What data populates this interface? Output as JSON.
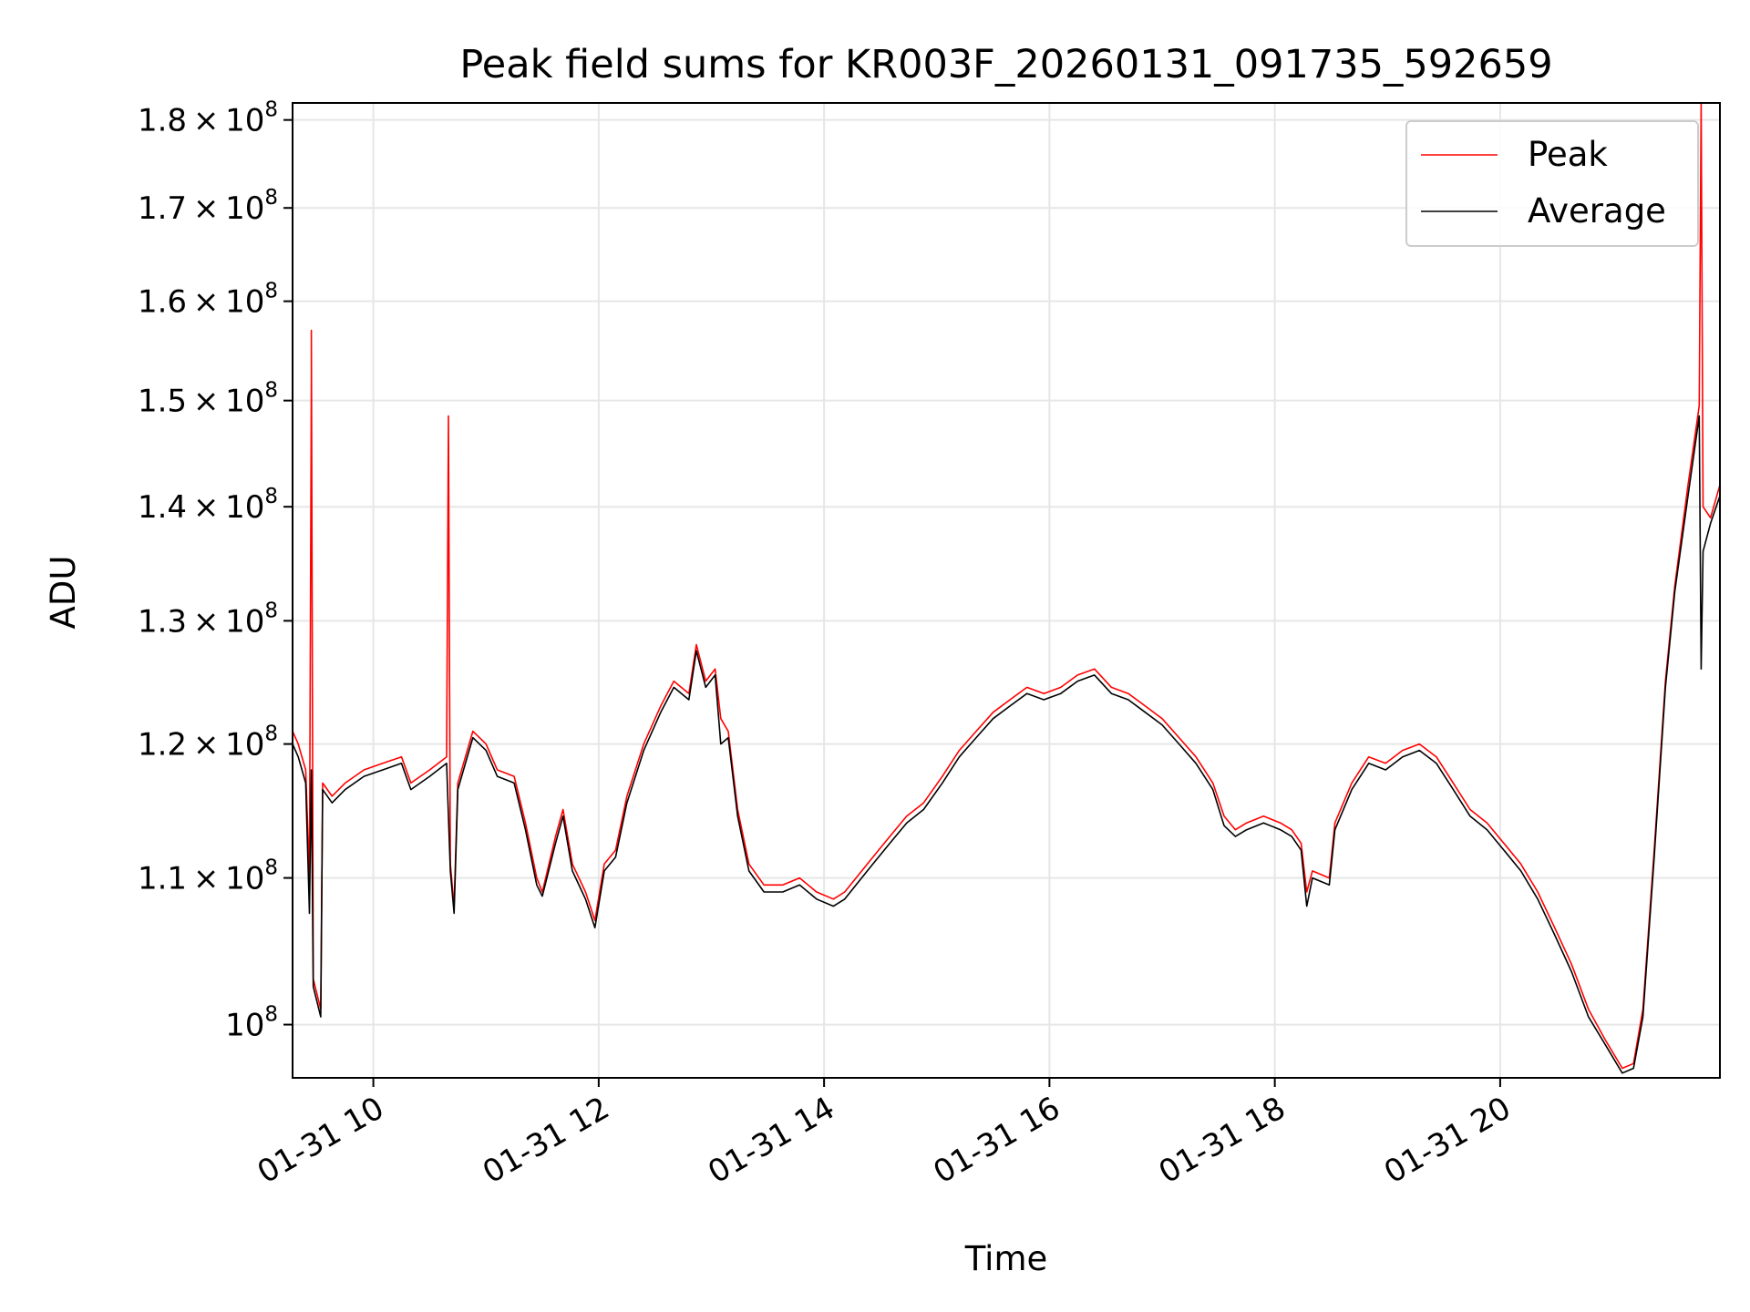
{
  "chart_data": {
    "type": "line",
    "title": "Peak field sums for KR003F_20260131_091735_592659",
    "xlabel": "Time",
    "ylabel": "ADU",
    "yscale": "log",
    "xlim": [
      "2026-01-31 09:17",
      "2026-01-31 21:57"
    ],
    "ylim": [
      96600000,
      182000000
    ],
    "x_ticks": [
      {
        "x": "2026-01-31 10:00",
        "label": "01-31 10"
      },
      {
        "x": "2026-01-31 12:00",
        "label": "01-31 12"
      },
      {
        "x": "2026-01-31 14:00",
        "label": "01-31 14"
      },
      {
        "x": "2026-01-31 16:00",
        "label": "01-31 16"
      },
      {
        "x": "2026-01-31 18:00",
        "label": "01-31 18"
      },
      {
        "x": "2026-01-31 20:00",
        "label": "01-31 20"
      }
    ],
    "y_ticks": [
      {
        "value": 100000000,
        "mantissa": "",
        "exp": "8"
      },
      {
        "value": 110000000,
        "mantissa": "1.1",
        "exp": "8"
      },
      {
        "value": 120000000,
        "mantissa": "1.2",
        "exp": "8"
      },
      {
        "value": 130000000,
        "mantissa": "1.3",
        "exp": "8"
      },
      {
        "value": 140000000,
        "mantissa": "1.4",
        "exp": "8"
      },
      {
        "value": 150000000,
        "mantissa": "1.5",
        "exp": "8"
      },
      {
        "value": 160000000,
        "mantissa": "1.6",
        "exp": "8"
      },
      {
        "value": 170000000,
        "mantissa": "1.7",
        "exp": "8"
      },
      {
        "value": 180000000,
        "mantissa": "1.8",
        "exp": "8"
      }
    ],
    "grid": true,
    "legend_position": "top-right",
    "series": [
      {
        "name": "Peak",
        "color": "#ff0000",
        "points": [
          [
            "2026-01-31 09:17",
            121000000
          ],
          [
            "2026-01-31 09:20",
            120000000
          ],
          [
            "2026-01-31 09:24",
            118000000
          ],
          [
            "2026-01-31 09:26",
            110000000
          ],
          [
            "2026-01-31 09:27",
            152000000
          ],
          [
            "2026-01-31 09:27",
            157000000
          ],
          [
            "2026-01-31 09:28",
            103000000
          ],
          [
            "2026-01-31 09:30",
            102000000
          ],
          [
            "2026-01-31 09:32",
            101000000
          ],
          [
            "2026-01-31 09:33",
            117000000
          ],
          [
            "2026-01-31 09:38",
            116000000
          ],
          [
            "2026-01-31 09:45",
            117000000
          ],
          [
            "2026-01-31 09:55",
            118000000
          ],
          [
            "2026-01-31 10:05",
            118500000
          ],
          [
            "2026-01-31 10:15",
            119000000
          ],
          [
            "2026-01-31 10:20",
            117000000
          ],
          [
            "2026-01-31 10:30",
            118000000
          ],
          [
            "2026-01-31 10:39",
            119000000
          ],
          [
            "2026-01-31 10:40",
            148500000
          ],
          [
            "2026-01-31 10:41",
            111000000
          ],
          [
            "2026-01-31 10:43",
            108000000
          ],
          [
            "2026-01-31 10:45",
            117000000
          ],
          [
            "2026-01-31 10:53",
            121000000
          ],
          [
            "2026-01-31 11:00",
            120000000
          ],
          [
            "2026-01-31 11:06",
            118000000
          ],
          [
            "2026-01-31 11:15",
            117500000
          ],
          [
            "2026-01-31 11:21",
            114000000
          ],
          [
            "2026-01-31 11:27",
            110000000
          ],
          [
            "2026-01-31 11:30",
            109000000
          ],
          [
            "2026-01-31 11:37",
            113000000
          ],
          [
            "2026-01-31 11:41",
            115000000
          ],
          [
            "2026-01-31 11:46",
            111000000
          ],
          [
            "2026-01-31 11:53",
            109000000
          ],
          [
            "2026-01-31 11:58",
            107000000
          ],
          [
            "2026-01-31 12:03",
            111000000
          ],
          [
            "2026-01-31 12:09",
            112000000
          ],
          [
            "2026-01-31 12:15",
            116000000
          ],
          [
            "2026-01-31 12:24",
            120000000
          ],
          [
            "2026-01-31 12:33",
            123000000
          ],
          [
            "2026-01-31 12:40",
            125000000
          ],
          [
            "2026-01-31 12:48",
            124000000
          ],
          [
            "2026-01-31 12:52",
            128000000
          ],
          [
            "2026-01-31 12:57",
            125000000
          ],
          [
            "2026-01-31 13:02",
            126000000
          ],
          [
            "2026-01-31 13:05",
            122000000
          ],
          [
            "2026-01-31 13:09",
            121000000
          ],
          [
            "2026-01-31 13:14",
            115000000
          ],
          [
            "2026-01-31 13:20",
            111000000
          ],
          [
            "2026-01-31 13:28",
            109500000
          ],
          [
            "2026-01-31 13:38",
            109500000
          ],
          [
            "2026-01-31 13:47",
            110000000
          ],
          [
            "2026-01-31 13:56",
            109000000
          ],
          [
            "2026-01-31 14:05",
            108500000
          ],
          [
            "2026-01-31 14:11",
            109000000
          ],
          [
            "2026-01-31 14:17",
            110000000
          ],
          [
            "2026-01-31 14:26",
            111500000
          ],
          [
            "2026-01-31 14:35",
            113000000
          ],
          [
            "2026-01-31 14:44",
            114500000
          ],
          [
            "2026-01-31 14:53",
            115500000
          ],
          [
            "2026-01-31 15:03",
            117500000
          ],
          [
            "2026-01-31 15:12",
            119500000
          ],
          [
            "2026-01-31 15:21",
            121000000
          ],
          [
            "2026-01-31 15:30",
            122500000
          ],
          [
            "2026-01-31 15:39",
            123500000
          ],
          [
            "2026-01-31 15:48",
            124500000
          ],
          [
            "2026-01-31 15:57",
            124000000
          ],
          [
            "2026-01-31 16:06",
            124500000
          ],
          [
            "2026-01-31 16:15",
            125500000
          ],
          [
            "2026-01-31 16:24",
            126000000
          ],
          [
            "2026-01-31 16:33",
            124500000
          ],
          [
            "2026-01-31 16:42",
            124000000
          ],
          [
            "2026-01-31 16:51",
            123000000
          ],
          [
            "2026-01-31 17:00",
            122000000
          ],
          [
            "2026-01-31 17:09",
            120500000
          ],
          [
            "2026-01-31 17:18",
            119000000
          ],
          [
            "2026-01-31 17:27",
            117000000
          ],
          [
            "2026-01-31 17:33",
            114500000
          ],
          [
            "2026-01-31 17:39",
            113500000
          ],
          [
            "2026-01-31 17:45",
            114000000
          ],
          [
            "2026-01-31 17:54",
            114500000
          ],
          [
            "2026-01-31 18:03",
            114000000
          ],
          [
            "2026-01-31 18:09",
            113500000
          ],
          [
            "2026-01-31 18:14",
            112500000
          ],
          [
            "2026-01-31 18:17",
            109000000
          ],
          [
            "2026-01-31 18:20",
            110500000
          ],
          [
            "2026-01-31 18:29",
            110000000
          ],
          [
            "2026-01-31 18:32",
            114000000
          ],
          [
            "2026-01-31 18:41",
            117000000
          ],
          [
            "2026-01-31 18:50",
            119000000
          ],
          [
            "2026-01-31 18:59",
            118500000
          ],
          [
            "2026-01-31 19:08",
            119500000
          ],
          [
            "2026-01-31 19:17",
            120000000
          ],
          [
            "2026-01-31 19:26",
            119000000
          ],
          [
            "2026-01-31 19:35",
            117000000
          ],
          [
            "2026-01-31 19:44",
            115000000
          ],
          [
            "2026-01-31 19:53",
            114000000
          ],
          [
            "2026-01-31 20:02",
            112500000
          ],
          [
            "2026-01-31 20:11",
            111000000
          ],
          [
            "2026-01-31 20:20",
            109000000
          ],
          [
            "2026-01-31 20:29",
            106500000
          ],
          [
            "2026-01-31 20:38",
            104000000
          ],
          [
            "2026-01-31 20:47",
            101000000
          ],
          [
            "2026-01-31 20:56",
            99000000
          ],
          [
            "2026-01-31 21:05",
            97200000
          ],
          [
            "2026-01-31 21:11",
            97500000
          ],
          [
            "2026-01-31 21:16",
            101000000
          ],
          [
            "2026-01-31 21:22",
            112000000
          ],
          [
            "2026-01-31 21:28",
            125000000
          ],
          [
            "2026-01-31 21:33",
            133000000
          ],
          [
            "2026-01-31 21:40",
            142000000
          ],
          [
            "2026-01-31 21:46",
            149500000
          ],
          [
            "2026-01-31 21:47",
            182000000
          ],
          [
            "2026-01-31 21:48",
            140000000
          ],
          [
            "2026-01-31 21:52",
            139000000
          ],
          [
            "2026-01-31 21:57",
            142000000
          ]
        ]
      },
      {
        "name": "Average",
        "color": "#000000",
        "points": [
          [
            "2026-01-31 09:17",
            120000000
          ],
          [
            "2026-01-31 09:20",
            119000000
          ],
          [
            "2026-01-31 09:24",
            117000000
          ],
          [
            "2026-01-31 09:26",
            107500000
          ],
          [
            "2026-01-31 09:27",
            118000000
          ],
          [
            "2026-01-31 09:28",
            102500000
          ],
          [
            "2026-01-31 09:30",
            101500000
          ],
          [
            "2026-01-31 09:32",
            100500000
          ],
          [
            "2026-01-31 09:33",
            116500000
          ],
          [
            "2026-01-31 09:38",
            115500000
          ],
          [
            "2026-01-31 09:45",
            116500000
          ],
          [
            "2026-01-31 09:55",
            117500000
          ],
          [
            "2026-01-31 10:05",
            118000000
          ],
          [
            "2026-01-31 10:15",
            118500000
          ],
          [
            "2026-01-31 10:20",
            116500000
          ],
          [
            "2026-01-31 10:30",
            117500000
          ],
          [
            "2026-01-31 10:39",
            118500000
          ],
          [
            "2026-01-31 10:41",
            110500000
          ],
          [
            "2026-01-31 10:43",
            107500000
          ],
          [
            "2026-01-31 10:45",
            116500000
          ],
          [
            "2026-01-31 10:53",
            120500000
          ],
          [
            "2026-01-31 11:00",
            119500000
          ],
          [
            "2026-01-31 11:06",
            117500000
          ],
          [
            "2026-01-31 11:15",
            117000000
          ],
          [
            "2026-01-31 11:21",
            113500000
          ],
          [
            "2026-01-31 11:27",
            109500000
          ],
          [
            "2026-01-31 11:30",
            108700000
          ],
          [
            "2026-01-31 11:37",
            112500000
          ],
          [
            "2026-01-31 11:41",
            114500000
          ],
          [
            "2026-01-31 11:46",
            110500000
          ],
          [
            "2026-01-31 11:53",
            108500000
          ],
          [
            "2026-01-31 11:58",
            106500000
          ],
          [
            "2026-01-31 12:03",
            110500000
          ],
          [
            "2026-01-31 12:09",
            111500000
          ],
          [
            "2026-01-31 12:15",
            115500000
          ],
          [
            "2026-01-31 12:24",
            119500000
          ],
          [
            "2026-01-31 12:33",
            122500000
          ],
          [
            "2026-01-31 12:40",
            124500000
          ],
          [
            "2026-01-31 12:48",
            123500000
          ],
          [
            "2026-01-31 12:52",
            127500000
          ],
          [
            "2026-01-31 12:57",
            124500000
          ],
          [
            "2026-01-31 13:02",
            125500000
          ],
          [
            "2026-01-31 13:05",
            120000000
          ],
          [
            "2026-01-31 13:09",
            120500000
          ],
          [
            "2026-01-31 13:14",
            114500000
          ],
          [
            "2026-01-31 13:20",
            110500000
          ],
          [
            "2026-01-31 13:28",
            109000000
          ],
          [
            "2026-01-31 13:38",
            109000000
          ],
          [
            "2026-01-31 13:47",
            109500000
          ],
          [
            "2026-01-31 13:56",
            108500000
          ],
          [
            "2026-01-31 14:05",
            108000000
          ],
          [
            "2026-01-31 14:11",
            108500000
          ],
          [
            "2026-01-31 14:17",
            109500000
          ],
          [
            "2026-01-31 14:26",
            111000000
          ],
          [
            "2026-01-31 14:35",
            112500000
          ],
          [
            "2026-01-31 14:44",
            114000000
          ],
          [
            "2026-01-31 14:53",
            115000000
          ],
          [
            "2026-01-31 15:03",
            117000000
          ],
          [
            "2026-01-31 15:12",
            119000000
          ],
          [
            "2026-01-31 15:21",
            120500000
          ],
          [
            "2026-01-31 15:30",
            122000000
          ],
          [
            "2026-01-31 15:39",
            123000000
          ],
          [
            "2026-01-31 15:48",
            124000000
          ],
          [
            "2026-01-31 15:57",
            123500000
          ],
          [
            "2026-01-31 16:06",
            124000000
          ],
          [
            "2026-01-31 16:15",
            125000000
          ],
          [
            "2026-01-31 16:24",
            125500000
          ],
          [
            "2026-01-31 16:33",
            124000000
          ],
          [
            "2026-01-31 16:42",
            123500000
          ],
          [
            "2026-01-31 16:51",
            122500000
          ],
          [
            "2026-01-31 17:00",
            121500000
          ],
          [
            "2026-01-31 17:09",
            120000000
          ],
          [
            "2026-01-31 17:18",
            118500000
          ],
          [
            "2026-01-31 17:27",
            116500000
          ],
          [
            "2026-01-31 17:33",
            113800000
          ],
          [
            "2026-01-31 17:39",
            113000000
          ],
          [
            "2026-01-31 17:45",
            113500000
          ],
          [
            "2026-01-31 17:54",
            114000000
          ],
          [
            "2026-01-31 18:03",
            113500000
          ],
          [
            "2026-01-31 18:09",
            113000000
          ],
          [
            "2026-01-31 18:14",
            112000000
          ],
          [
            "2026-01-31 18:17",
            108000000
          ],
          [
            "2026-01-31 18:20",
            110000000
          ],
          [
            "2026-01-31 18:29",
            109500000
          ],
          [
            "2026-01-31 18:32",
            113500000
          ],
          [
            "2026-01-31 18:41",
            116500000
          ],
          [
            "2026-01-31 18:50",
            118500000
          ],
          [
            "2026-01-31 18:59",
            118000000
          ],
          [
            "2026-01-31 19:08",
            119000000
          ],
          [
            "2026-01-31 19:17",
            119500000
          ],
          [
            "2026-01-31 19:26",
            118500000
          ],
          [
            "2026-01-31 19:35",
            116500000
          ],
          [
            "2026-01-31 19:44",
            114500000
          ],
          [
            "2026-01-31 19:53",
            113500000
          ],
          [
            "2026-01-31 20:02",
            112000000
          ],
          [
            "2026-01-31 20:11",
            110500000
          ],
          [
            "2026-01-31 20:20",
            108500000
          ],
          [
            "2026-01-31 20:29",
            106000000
          ],
          [
            "2026-01-31 20:38",
            103500000
          ],
          [
            "2026-01-31 20:47",
            100500000
          ],
          [
            "2026-01-31 20:56",
            98700000
          ],
          [
            "2026-01-31 21:05",
            96900000
          ],
          [
            "2026-01-31 21:11",
            97200000
          ],
          [
            "2026-01-31 21:16",
            100500000
          ],
          [
            "2026-01-31 21:22",
            111500000
          ],
          [
            "2026-01-31 21:28",
            124500000
          ],
          [
            "2026-01-31 21:33",
            132500000
          ],
          [
            "2026-01-31 21:40",
            141000000
          ],
          [
            "2026-01-31 21:46",
            148500000
          ],
          [
            "2026-01-31 21:47",
            126000000
          ],
          [
            "2026-01-31 21:48",
            136000000
          ],
          [
            "2026-01-31 21:52",
            138500000
          ],
          [
            "2026-01-31 21:57",
            141000000
          ]
        ]
      }
    ]
  }
}
